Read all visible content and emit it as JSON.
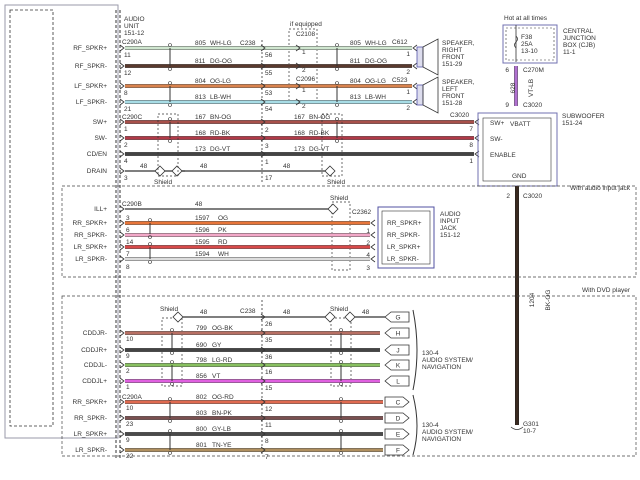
{
  "audio_unit": {
    "title": [
      "AUDIO",
      "UNIT",
      "151-12"
    ]
  },
  "connectors": {
    "c290a": "C290A",
    "c290c": "C290C",
    "c290b": "C290B",
    "c238": "C238",
    "c2108": "C2108",
    "c2096": "C2096",
    "c612": "C612",
    "c523": "C523",
    "c3020": "C3020",
    "c2362": "C2362",
    "c270m": "C270M"
  },
  "notes": {
    "if_equipped": "if equipped",
    "shield": "Shield",
    "with_audio_input_jack": "With audio input jack",
    "with_dvd_player": "With DVD player",
    "hot_at_all_times": "Hot at all times"
  },
  "speaker_right": [
    "SPEAKER,",
    "RIGHT",
    "FRONT",
    "151-29"
  ],
  "speaker_left": [
    "SPEAKER,",
    "LEFT",
    "FRONT",
    "151-28"
  ],
  "cjb": {
    "title": [
      "CENTRAL",
      "JUNCTION",
      "BOX (CJB)",
      "11-1"
    ],
    "fuse": [
      "F38",
      "25A",
      "13-10"
    ]
  },
  "power_wire": {
    "circuit": "628",
    "color_code": "VT-LB",
    "pin_top": "6",
    "pin_bottom": "9",
    "color": "#b070d0"
  },
  "subwoofer": {
    "title": [
      "SUBWOOFER",
      "151-24"
    ],
    "pins": [
      "SW+",
      "SW-",
      "ENABLE"
    ],
    "vbatt": "VBATT",
    "gnd": "GND"
  },
  "ground_wire": {
    "circuit": "1204",
    "color_code": "BK-OG",
    "pin": "2",
    "ground": "G301",
    "ref": "10-7",
    "color": "#3a2a20"
  },
  "main_wires": [
    {
      "label": "RF_SPKR+",
      "pin_left": "11",
      "circuit": "805",
      "color_code": "WH-LG",
      "pin_mid": "56",
      "pin_opt": "1",
      "pin_right": "1",
      "color": "#cfe6cf"
    },
    {
      "label": "RF_SPKR-",
      "pin_left": "12",
      "circuit": "811",
      "color_code": "DG-OG",
      "pin_mid": "55",
      "pin_opt": "2",
      "pin_right": "2",
      "color": "#5a3a2e"
    },
    {
      "label": "LF_SPKR+",
      "pin_left": "8",
      "circuit": "804",
      "color_code": "OG-LG",
      "pin_mid": "53",
      "pin_opt": "1",
      "pin_right": "1",
      "color": "#d9834e"
    },
    {
      "label": "LF_SPKR-",
      "pin_left": "21",
      "circuit": "813",
      "color_code": "LB-WH",
      "pin_mid": "54",
      "pin_opt": "2",
      "pin_right": "2",
      "color": "#a8dde6"
    },
    {
      "label": "SW+",
      "pin_left": "1",
      "circuit": "167",
      "color_code": "BN-OG",
      "pin_mid": "2",
      "pin_right": "7",
      "color": "#a8504a"
    },
    {
      "label": "SW-",
      "pin_left": "2",
      "circuit": "168",
      "color_code": "RD-BK",
      "pin_mid": "3",
      "pin_right": "8",
      "color": "#b03a48"
    },
    {
      "label": "CD/EN",
      "pin_left": "4",
      "circuit": "173",
      "color_code": "DG-VT",
      "pin_mid": "1",
      "pin_right": "1",
      "color": "#444444"
    },
    {
      "label": "DRAIN",
      "pin_left": "3",
      "circuit": "48",
      "color_code": "",
      "pin_mid": "17",
      "pin_right": "",
      "color": "#333333"
    }
  ],
  "jack_wires": [
    {
      "label": "ILL+",
      "pin_left": "",
      "circuit": "48",
      "color_code": "",
      "pin_right": "",
      "color": "#333333"
    },
    {
      "label": "RR_SPKR+",
      "pin_left": "3",
      "circuit": "1597",
      "color_code": "OG",
      "pin_right": "",
      "jack_label": "RR_SPKR+",
      "color": "#e8763a"
    },
    {
      "label": "RR_SPKR-",
      "pin_left": "6",
      "circuit": "1596",
      "color_code": "PK",
      "pin_right": "1",
      "jack_label": "RR_SPKR-",
      "color": "#f2a8c8"
    },
    {
      "label": "LR_SPKR+",
      "pin_left": "14",
      "circuit": "1595",
      "color_code": "RD",
      "pin_right": "2",
      "jack_label": "LR_SPKR+",
      "color": "#d84a4a"
    },
    {
      "label": "LR_SPKR-",
      "pin_left": "7",
      "circuit": "1594",
      "color_code": "WH",
      "pin_right": "4",
      "jack_label": "LR_SPKR-",
      "color": "#dddddd"
    }
  ],
  "jack_extra": {
    "pin_left": "8",
    "pin_right": "3"
  },
  "audio_input_jack": [
    "AUDIO",
    "INPUT",
    "JACK",
    "151-12"
  ],
  "dvd_drain": {
    "circuit": "48",
    "pin_mid": "26",
    "tag": "G"
  },
  "dvd_wires": [
    {
      "label": "CDDJR-",
      "pin_left": "10",
      "circuit": "799",
      "color_code": "OG-BK",
      "pin_mid": "35",
      "tag": "H",
      "color": "#b87064"
    },
    {
      "label": "CDDJR+",
      "pin_left": "9",
      "circuit": "690",
      "color_code": "GY",
      "pin_mid": "36",
      "tag": "J",
      "color": "#444444"
    },
    {
      "label": "CDDJL-",
      "pin_left": "2",
      "circuit": "798",
      "color_code": "LG-RD",
      "pin_mid": "16",
      "tag": "K",
      "color": "#88c060"
    },
    {
      "label": "CDDJL+",
      "pin_left": "1",
      "circuit": "856",
      "color_code": "VT",
      "pin_mid": "15",
      "tag": "L",
      "color": "#e060e0"
    },
    {
      "label": "RR_SPKR+",
      "pin_left": "10",
      "circuit": "802",
      "color_code": "OG-RD",
      "pin_mid": "12",
      "tag": "C",
      "color": "#e06a50"
    },
    {
      "label": "RR_SPKR-",
      "pin_left": "23",
      "circuit": "803",
      "color_code": "BN-PK",
      "pin_mid": "11",
      "tag": "D",
      "color": "#7a5050"
    },
    {
      "label": "LR_SPKR+",
      "pin_left": "9",
      "circuit": "800",
      "color_code": "GY-LB",
      "pin_mid": "8",
      "tag": "E",
      "color": "#4a4a4a"
    },
    {
      "label": "LR_SPKR-",
      "pin_left": "22",
      "circuit": "801",
      "color_code": "TN-YE",
      "pin_mid": "7",
      "tag": "F",
      "color": "#b09060"
    }
  ],
  "audio_system_nav": [
    "130-4",
    "AUDIO SYSTEM/",
    "NAVIGATION"
  ]
}
